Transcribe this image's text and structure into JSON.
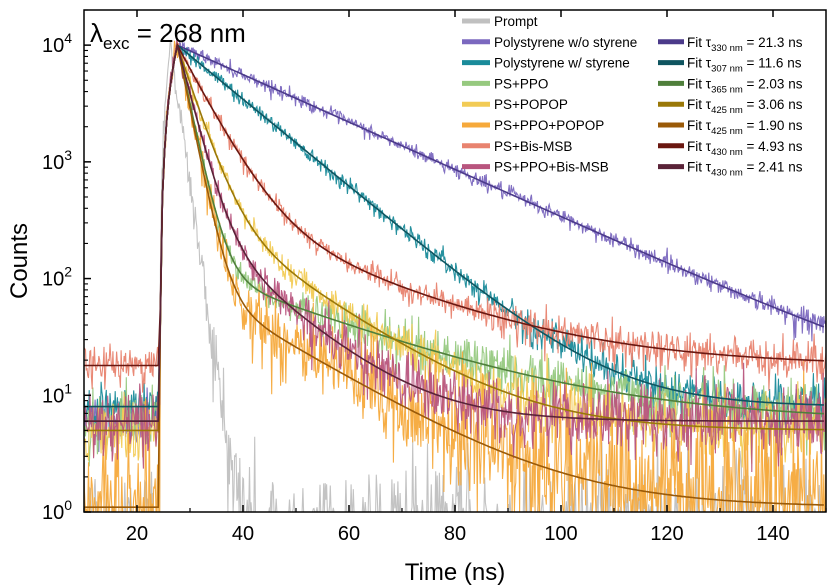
{
  "chart_data": {
    "type": "line",
    "xlabel": "Time (ns)",
    "ylabel": "Counts",
    "xlim": [
      10,
      150
    ],
    "ylim": [
      1,
      20000
    ],
    "yscale": "log",
    "x_ticks": [
      20,
      40,
      60,
      80,
      100,
      120,
      140
    ],
    "x_tick_labels": [
      "20",
      "40",
      "60",
      "80",
      "100",
      "120",
      "140"
    ],
    "y_ticks": [
      1,
      10,
      100,
      1000,
      10000
    ],
    "y_tick_labels": [
      {
        "base": "10",
        "exp": "0"
      },
      {
        "base": "10",
        "exp": "1"
      },
      {
        "base": "10",
        "exp": "2"
      },
      {
        "base": "10",
        "exp": "3"
      },
      {
        "base": "10",
        "exp": "4"
      }
    ],
    "annotation": {
      "symbol": "λ",
      "sub": "exc",
      "text": " = 268 nm"
    },
    "legend_position": "top-right",
    "series": [
      {
        "name": "Prompt",
        "kind": "data",
        "color": "#c0c0c0",
        "peak_t": 26.3,
        "tau": 1.35,
        "background": 0.5,
        "noise": 0.55
      },
      {
        "name": "Polystyrene w/o styrene",
        "kind": "data",
        "color": "#7b68bf",
        "peak_t": 27.6,
        "tau": 21.3,
        "background": 6,
        "noise": 0.22
      },
      {
        "name": "Polystyrene w/ styrene",
        "kind": "data",
        "color": "#1a8b9a",
        "peak_t": 27.6,
        "tau": 11.6,
        "background": 8,
        "noise": 0.25
      },
      {
        "name": "PS+PPO",
        "kind": "data",
        "color": "#96c97f",
        "peak_t": 27.6,
        "tau": 2.03,
        "tail_amp": 0.0125,
        "tail_tau": 25,
        "background": 6,
        "noise": 0.3
      },
      {
        "name": "PS+POPOP",
        "kind": "data",
        "color": "#f2cb55",
        "peak_t": 27.6,
        "tau": 3.06,
        "tail_amp": 0.047,
        "tail_tau": 14,
        "background": 5,
        "noise": 0.3
      },
      {
        "name": "PS+PPO+POPOP",
        "kind": "data",
        "color": "#f6a93b",
        "peak_t": 27.6,
        "tau": 1.9,
        "tail_amp": 0.01,
        "tail_tau": 16,
        "background": 1.1,
        "noise": 0.6
      },
      {
        "name": "PS+Bis-MSB",
        "kind": "data",
        "color": "#e8836f",
        "peak_t": 27.6,
        "tau": 4.93,
        "tail_amp": 0.045,
        "tail_tau": 22,
        "background": 18,
        "noise": 0.25
      },
      {
        "name": "PS+PPO+Bis-MSB",
        "kind": "data",
        "color": "#b8557e",
        "peak_t": 27.6,
        "tau": 2.41,
        "tail_amp": 0.035,
        "tail_tau": 11,
        "background": 6,
        "noise": 0.35
      },
      {
        "name": "Fit",
        "kind": "fit",
        "wavelength": "330 nm",
        "tau_text": "21.3 ns",
        "color": "#4b3a8a",
        "peak_t": 27.6,
        "tau": 21.3,
        "background": 6
      },
      {
        "name": "Fit",
        "kind": "fit",
        "wavelength": "307 nm",
        "tau_text": "11.6 ns",
        "color": "#0f5560",
        "peak_t": 27.6,
        "tau": 11.6,
        "background": 8
      },
      {
        "name": "Fit",
        "kind": "fit",
        "wavelength": "365 nm",
        "tau_text": "2.03 ns",
        "color": "#4f7f3b",
        "peak_t": 27.6,
        "tau": 2.03,
        "tail_amp": 0.0125,
        "tail_tau": 25,
        "background": 6
      },
      {
        "name": "Fit",
        "kind": "fit",
        "wavelength": "425 nm",
        "tau_text": "3.06 ns",
        "color": "#9a7808",
        "peak_t": 27.6,
        "tau": 3.06,
        "tail_amp": 0.047,
        "tail_tau": 14,
        "background": 5
      },
      {
        "name": "Fit",
        "kind": "fit",
        "wavelength": "425 nm",
        "tau_text": "1.90 ns",
        "color": "#9a5a08",
        "peak_t": 27.6,
        "tau": 1.9,
        "tail_amp": 0.01,
        "tail_tau": 16,
        "background": 1.1
      },
      {
        "name": "Fit",
        "kind": "fit",
        "wavelength": "430 nm",
        "tau_text": "4.93 ns",
        "color": "#6a1710",
        "peak_t": 27.6,
        "tau": 4.93,
        "tail_amp": 0.045,
        "tail_tau": 22,
        "background": 18
      },
      {
        "name": "Fit",
        "kind": "fit",
        "wavelength": "430 nm",
        "tau_text": "2.41 ns",
        "color": "#5a2338",
        "peak_t": 27.6,
        "tau": 2.41,
        "tail_amp": 0.035,
        "tail_tau": 11,
        "background": 6
      }
    ]
  }
}
